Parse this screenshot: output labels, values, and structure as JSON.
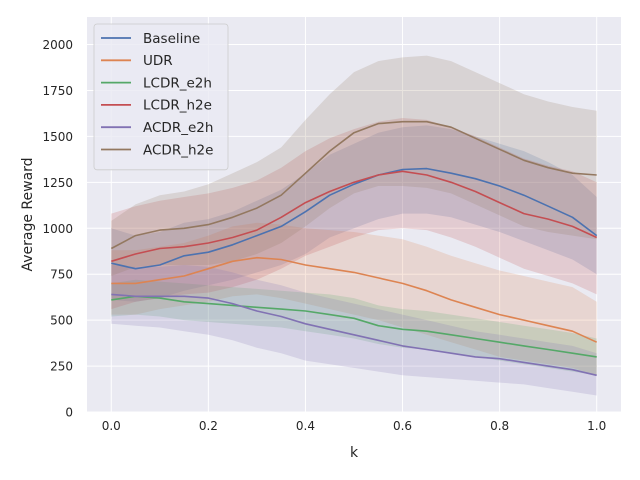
{
  "chart_data": {
    "type": "line",
    "title": "",
    "xlabel": "k",
    "ylabel": "Average Reward",
    "xlim": [
      -0.05,
      1.05
    ],
    "ylim": [
      0,
      2150
    ],
    "xticks": [
      0.0,
      0.2,
      0.4,
      0.6,
      0.8,
      1.0
    ],
    "xtick_labels": [
      "0.0",
      "0.2",
      "0.4",
      "0.6",
      "0.8",
      "1.0"
    ],
    "yticks": [
      0,
      250,
      500,
      750,
      1000,
      1250,
      1500,
      1750,
      2000
    ],
    "ytick_labels": [
      "0",
      "250",
      "500",
      "750",
      "1000",
      "1250",
      "1500",
      "1750",
      "2000"
    ],
    "grid": true,
    "legend_position": "top-left",
    "x": [
      0.0,
      0.05,
      0.1,
      0.15,
      0.2,
      0.25,
      0.3,
      0.35,
      0.4,
      0.45,
      0.5,
      0.55,
      0.6,
      0.65,
      0.7,
      0.75,
      0.8,
      0.85,
      0.9,
      0.95,
      1.0
    ],
    "series": [
      {
        "name": "Baseline",
        "color": "#4C72B0",
        "values": [
          810,
          780,
          800,
          850,
          870,
          910,
          960,
          1010,
          1090,
          1180,
          1240,
          1290,
          1320,
          1325,
          1300,
          1270,
          1230,
          1180,
          1120,
          1060,
          960
        ],
        "lower": [
          610,
          600,
          620,
          660,
          690,
          720,
          760,
          800,
          860,
          950,
          1000,
          1050,
          1080,
          1080,
          1060,
          1020,
          980,
          930,
          880,
          830,
          750
        ],
        "upper": [
          1000,
          960,
          980,
          1030,
          1050,
          1090,
          1150,
          1210,
          1300,
          1400,
          1460,
          1520,
          1550,
          1560,
          1540,
          1500,
          1460,
          1420,
          1360,
          1290,
          1170
        ]
      },
      {
        "name": "UDR",
        "color": "#DD8452",
        "values": [
          700,
          700,
          720,
          740,
          780,
          820,
          840,
          830,
          800,
          780,
          760,
          730,
          700,
          660,
          610,
          570,
          530,
          500,
          470,
          440,
          380
        ],
        "lower": [
          530,
          530,
          560,
          580,
          600,
          630,
          640,
          620,
          590,
          560,
          530,
          500,
          460,
          420,
          380,
          340,
          300,
          280,
          260,
          240,
          200
        ],
        "upper": [
          880,
          880,
          900,
          920,
          960,
          1010,
          1030,
          1020,
          1000,
          990,
          980,
          960,
          940,
          900,
          850,
          810,
          770,
          740,
          710,
          680,
          600
        ]
      },
      {
        "name": "LCDR_e2h",
        "color": "#55A868",
        "values": [
          610,
          630,
          620,
          600,
          590,
          580,
          570,
          560,
          550,
          530,
          510,
          470,
          450,
          440,
          420,
          400,
          380,
          360,
          340,
          320,
          300
        ],
        "lower": [
          520,
          530,
          520,
          500,
          490,
          480,
          470,
          460,
          440,
          420,
          400,
          370,
          350,
          340,
          320,
          300,
          280,
          260,
          240,
          220,
          200
        ],
        "upper": [
          700,
          720,
          710,
          700,
          690,
          680,
          670,
          660,
          650,
          640,
          620,
          580,
          560,
          550,
          530,
          510,
          490,
          470,
          450,
          430,
          400
        ]
      },
      {
        "name": "LCDR_h2e",
        "color": "#C44E52",
        "values": [
          820,
          860,
          890,
          900,
          920,
          950,
          990,
          1060,
          1140,
          1200,
          1250,
          1290,
          1310,
          1290,
          1250,
          1200,
          1140,
          1080,
          1050,
          1010,
          950
        ],
        "lower": [
          560,
          600,
          620,
          640,
          650,
          680,
          720,
          780,
          850,
          900,
          950,
          990,
          1000,
          990,
          950,
          900,
          840,
          780,
          740,
          700,
          640
        ],
        "upper": [
          1080,
          1120,
          1150,
          1170,
          1190,
          1220,
          1260,
          1330,
          1420,
          1490,
          1540,
          1580,
          1600,
          1590,
          1550,
          1500,
          1440,
          1380,
          1340,
          1310,
          1250
        ]
      },
      {
        "name": "ACDR_e2h",
        "color": "#8172B3",
        "values": [
          640,
          630,
          630,
          630,
          620,
          590,
          550,
          520,
          480,
          450,
          420,
          390,
          360,
          340,
          320,
          300,
          290,
          270,
          250,
          230,
          200
        ],
        "lower": [
          480,
          470,
          460,
          440,
          420,
          390,
          350,
          320,
          280,
          260,
          240,
          220,
          200,
          190,
          180,
          170,
          160,
          150,
          130,
          110,
          90
        ],
        "upper": [
          800,
          790,
          790,
          800,
          790,
          760,
          720,
          690,
          650,
          620,
          590,
          560,
          530,
          500,
          470,
          440,
          420,
          400,
          380,
          360,
          320
        ]
      },
      {
        "name": "ACDR_h2e",
        "color": "#937860",
        "values": [
          890,
          960,
          990,
          1000,
          1020,
          1060,
          1110,
          1180,
          1300,
          1420,
          1520,
          1570,
          1580,
          1580,
          1550,
          1490,
          1430,
          1370,
          1330,
          1300,
          1290
        ],
        "lower": [
          740,
          790,
          800,
          800,
          800,
          820,
          860,
          920,
          1010,
          1110,
          1190,
          1230,
          1230,
          1220,
          1190,
          1130,
          1070,
          1010,
          980,
          960,
          940
        ],
        "upper": [
          1040,
          1130,
          1180,
          1200,
          1240,
          1300,
          1360,
          1440,
          1590,
          1730,
          1850,
          1910,
          1930,
          1940,
          1910,
          1850,
          1790,
          1730,
          1690,
          1660,
          1640
        ]
      }
    ]
  }
}
